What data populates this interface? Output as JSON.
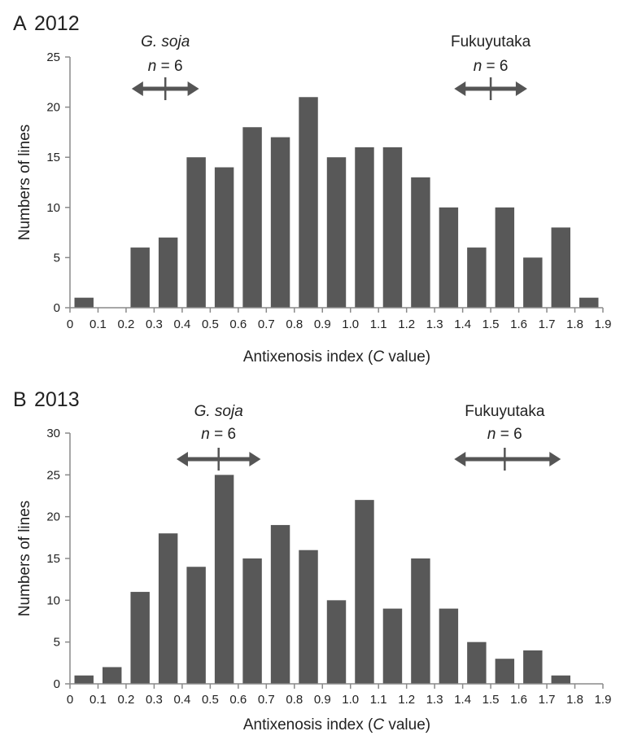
{
  "chart_data": [
    {
      "type": "bar",
      "panel_letter": "A",
      "year": "2012",
      "xlabel_pre": "Antixenosis index (",
      "xlabel_var": "C",
      "xlabel_post": " value)",
      "ylabel": "Numbers of lines",
      "ylim": [
        0,
        25
      ],
      "yticks": [
        "0",
        "5",
        "10",
        "15",
        "20",
        "25"
      ],
      "xticks": [
        "0",
        "0.1",
        "0.2",
        "0.3",
        "0.4",
        "0.5",
        "0.6",
        "0.7",
        "0.8",
        "0.9",
        "1.0",
        "1.1",
        "1.2",
        "1.3",
        "1.4",
        "1.5",
        "1.6",
        "1.7",
        "1.8",
        "1.9"
      ],
      "bin_width": 0.1,
      "values": [
        1,
        0,
        6,
        7,
        15,
        14,
        18,
        17,
        21,
        15,
        16,
        16,
        13,
        10,
        6,
        10,
        5,
        8,
        1
      ],
      "bar_color": "#585858",
      "annotations": [
        {
          "label": "G. soja",
          "italic": true,
          "n_label": "n",
          "n_value": "= 6",
          "mean": 0.34,
          "min": 0.22,
          "max": 0.46
        },
        {
          "label": "Fukuyutaka",
          "italic": false,
          "n_label": "n",
          "n_value": "= 6",
          "mean": 1.5,
          "min": 1.37,
          "max": 1.63
        }
      ]
    },
    {
      "type": "bar",
      "panel_letter": "B",
      "year": "2013",
      "xlabel_pre": "Antixenosis index (",
      "xlabel_var": "C",
      "xlabel_post": " value)",
      "ylabel": "Numbers of lines",
      "ylim": [
        0,
        30
      ],
      "yticks": [
        "0",
        "5",
        "10",
        "15",
        "20",
        "25",
        "30"
      ],
      "xticks": [
        "0",
        "0.1",
        "0.2",
        "0.3",
        "0.4",
        "0.5",
        "0.6",
        "0.7",
        "0.8",
        "0.9",
        "1.0",
        "1.1",
        "1.2",
        "1.3",
        "1.4",
        "1.5",
        "1.6",
        "1.7",
        "1.8",
        "1.9"
      ],
      "bin_width": 0.1,
      "values": [
        1,
        2,
        11,
        18,
        14,
        25,
        15,
        19,
        16,
        10,
        22,
        9,
        15,
        9,
        5,
        3,
        4,
        1,
        0
      ],
      "bar_color": "#585858",
      "annotations": [
        {
          "label": "G. soja",
          "italic": true,
          "n_label": "n",
          "n_value": "= 6",
          "mean": 0.53,
          "min": 0.38,
          "max": 0.68
        },
        {
          "label": "Fukuyutaka",
          "italic": false,
          "n_label": "n",
          "n_value": "= 6",
          "mean": 1.55,
          "min": 1.37,
          "max": 1.75
        }
      ]
    }
  ]
}
